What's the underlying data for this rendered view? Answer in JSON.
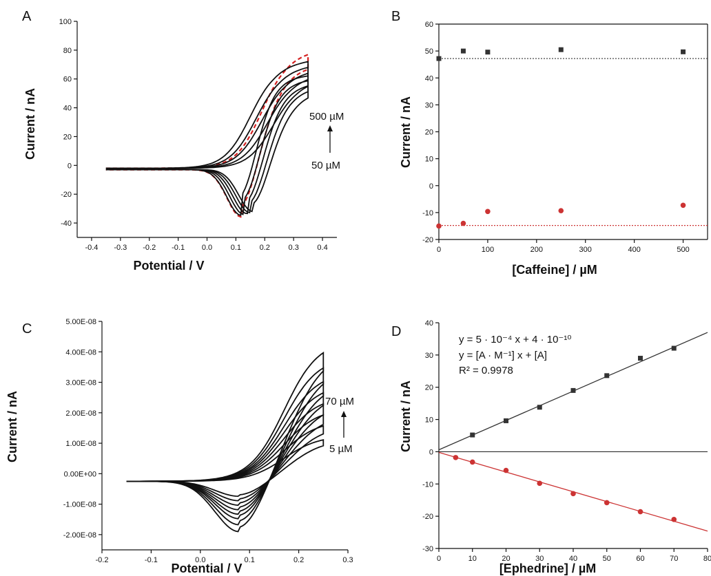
{
  "panels": {
    "A": {
      "label": "A",
      "xlabel": "Potential / V",
      "ylabel": "Current / nA",
      "annotation_top": "500 µM",
      "annotation_bottom": "50 µM"
    },
    "B": {
      "label": "B",
      "xlabel": "[Caffeine] / µM",
      "ylabel": "Current / nA"
    },
    "C": {
      "label": "C",
      "xlabel": "Potential / V",
      "ylabel": "Current / nA",
      "annotation_top": "70 µM",
      "annotation_bottom": "5 µM"
    },
    "D": {
      "label": "D",
      "xlabel": "[Ephedrine] / µM",
      "ylabel": "Current / nA",
      "eq_line1": "y = 5 · 10⁻⁴ x + 4 · 10⁻¹⁰",
      "eq_line2": "y = [A · M⁻¹] x + [A]",
      "eq_line3": "R² = 0.9978"
    }
  },
  "colors": {
    "black_series": "#333333",
    "red_series": "#cc3333",
    "red_dashed": "#d42020",
    "trace": "#111111"
  },
  "chart_data": [
    {
      "type": "line",
      "panel": "A",
      "xlabel": "Potential / V",
      "ylabel": "Current / nA",
      "xlim": [
        -0.45,
        0.45
      ],
      "ylim": [
        -50,
        100
      ],
      "xticks": [
        -0.4,
        -0.3,
        -0.2,
        -0.1,
        0.0,
        0.1,
        0.2,
        0.3,
        0.4
      ],
      "yticks": [
        -40,
        -20,
        0,
        20,
        40,
        60,
        80,
        100
      ],
      "xtick_labels": [
        "-0.4",
        "-0.3",
        "-0.2",
        "-0.1",
        "0.0",
        "0.1",
        "0.2",
        "0.3",
        "0.4"
      ],
      "ytick_labels": [
        "-40",
        "-20",
        "0",
        "20",
        "40",
        "60",
        "80",
        "100"
      ],
      "curves": [
        {
          "peak_ox": 0.22,
          "peak_red": 0.12,
          "red_current": -34,
          "max_current": 81,
          "style": "dashed-red"
        },
        {
          "peak_ox": 0.18,
          "peak_red": 0.12,
          "red_current": -34,
          "max_current": 74
        },
        {
          "peak_ox": 0.2,
          "peak_red": 0.13,
          "red_current": -33,
          "max_current": 71
        },
        {
          "peak_ox": 0.22,
          "peak_red": 0.14,
          "red_current": -32,
          "max_current": 68
        },
        {
          "peak_ox": 0.24,
          "peak_red": 0.15,
          "red_current": -31,
          "max_current": 65
        },
        {
          "peak_ox": 0.26,
          "peak_red": 0.16,
          "red_current": -30,
          "max_current": 62
        }
      ]
    },
    {
      "type": "scatter",
      "panel": "B",
      "xlabel": "[Caffeine] / µM",
      "ylabel": "Current / nA",
      "xlim": [
        0,
        550
      ],
      "ylim": [
        -20,
        60
      ],
      "xticks": [
        0,
        100,
        200,
        300,
        400,
        500
      ],
      "yticks": [
        -20,
        -10,
        0,
        10,
        20,
        30,
        40,
        50,
        60
      ],
      "xtick_labels": [
        "0",
        "100",
        "200",
        "300",
        "400",
        "500"
      ],
      "ytick_labels": [
        "-20",
        "-10",
        "0",
        "10",
        "20",
        "30",
        "40",
        "50",
        "60"
      ],
      "series": [
        {
          "marker": "square",
          "color": "#333333",
          "x": [
            0,
            50,
            100,
            250,
            500
          ],
          "y": [
            47.2,
            50.0,
            49.6,
            50.5,
            49.7
          ],
          "reference_line": 47.2
        },
        {
          "marker": "circle",
          "color": "#cc3333",
          "x": [
            0,
            50,
            100,
            250,
            500
          ],
          "y": [
            -15.0,
            -14.0,
            -9.6,
            -9.3,
            -7.3
          ],
          "reference_line": -14.8
        }
      ]
    },
    {
      "type": "line",
      "panel": "C",
      "xlabel": "Potential / V",
      "ylabel": "Current / nA",
      "xlim": [
        -0.2,
        0.3
      ],
      "ylim": [
        -2.5e-08,
        5e-08
      ],
      "xticks": [
        -0.2,
        -0.1,
        0.0,
        0.1,
        0.2,
        0.3
      ],
      "yticks": [
        -2e-08,
        -1e-08,
        0,
        1e-08,
        2e-08,
        3e-08,
        4e-08,
        5e-08
      ],
      "xtick_labels": [
        "-0.2",
        "-0.1",
        "0.0",
        "0.1",
        "0.2",
        "0.3"
      ],
      "ytick_labels": [
        "-2.00E-08",
        "-1.00E-08",
        "0.00E+00",
        "1.00E-08",
        "2.00E-08",
        "3.00E-08",
        "4.00E-08",
        "5.00E-08"
      ],
      "curves": [
        {
          "peak_red_current": -5e-09,
          "max_current": 1.5e-08
        },
        {
          "peak_red_current": -6.5e-09,
          "max_current": 2e-08
        },
        {
          "peak_red_current": -8e-09,
          "max_current": 2.4e-08
        },
        {
          "peak_red_current": -9.5e-09,
          "max_current": 2.8e-08
        },
        {
          "peak_red_current": -1.1e-08,
          "max_current": 3.2e-08
        },
        {
          "peak_red_current": -1.25e-08,
          "max_current": 3.6e-08
        },
        {
          "peak_red_current": -1.45e-08,
          "max_current": 4.1e-08
        },
        {
          "peak_red_current": -1.68e-08,
          "max_current": 4.65e-08
        }
      ]
    },
    {
      "type": "scatter",
      "panel": "D",
      "xlabel": "[Ephedrine] / µM",
      "ylabel": "Current / nA",
      "xlim": [
        0,
        80
      ],
      "ylim": [
        -30,
        40
      ],
      "xticks": [
        0,
        10,
        20,
        30,
        40,
        50,
        60,
        70,
        80
      ],
      "yticks": [
        -30,
        -20,
        -10,
        0,
        10,
        20,
        30,
        40
      ],
      "xtick_labels": [
        "0",
        "10",
        "20",
        "30",
        "40",
        "50",
        "60",
        "70",
        "80"
      ],
      "ytick_labels": [
        "-30",
        "-20",
        "-10",
        "0",
        "10",
        "20",
        "30",
        "40"
      ],
      "series": [
        {
          "marker": "square",
          "color": "#333333",
          "x": [
            10,
            20,
            30,
            40,
            50,
            60,
            70
          ],
          "y": [
            5.2,
            9.6,
            13.8,
            19.0,
            23.6,
            29.0,
            32.1
          ],
          "fit": [
            0.6,
            0.455
          ]
        },
        {
          "marker": "circle",
          "color": "#cc3333",
          "x": [
            5,
            10,
            20,
            30,
            40,
            50,
            60,
            70
          ],
          "y": [
            -1.8,
            -3.2,
            -5.8,
            -9.8,
            -13.0,
            -15.8,
            -18.6,
            -21.0
          ],
          "fit": [
            -0.2,
            -0.305
          ]
        }
      ]
    }
  ]
}
